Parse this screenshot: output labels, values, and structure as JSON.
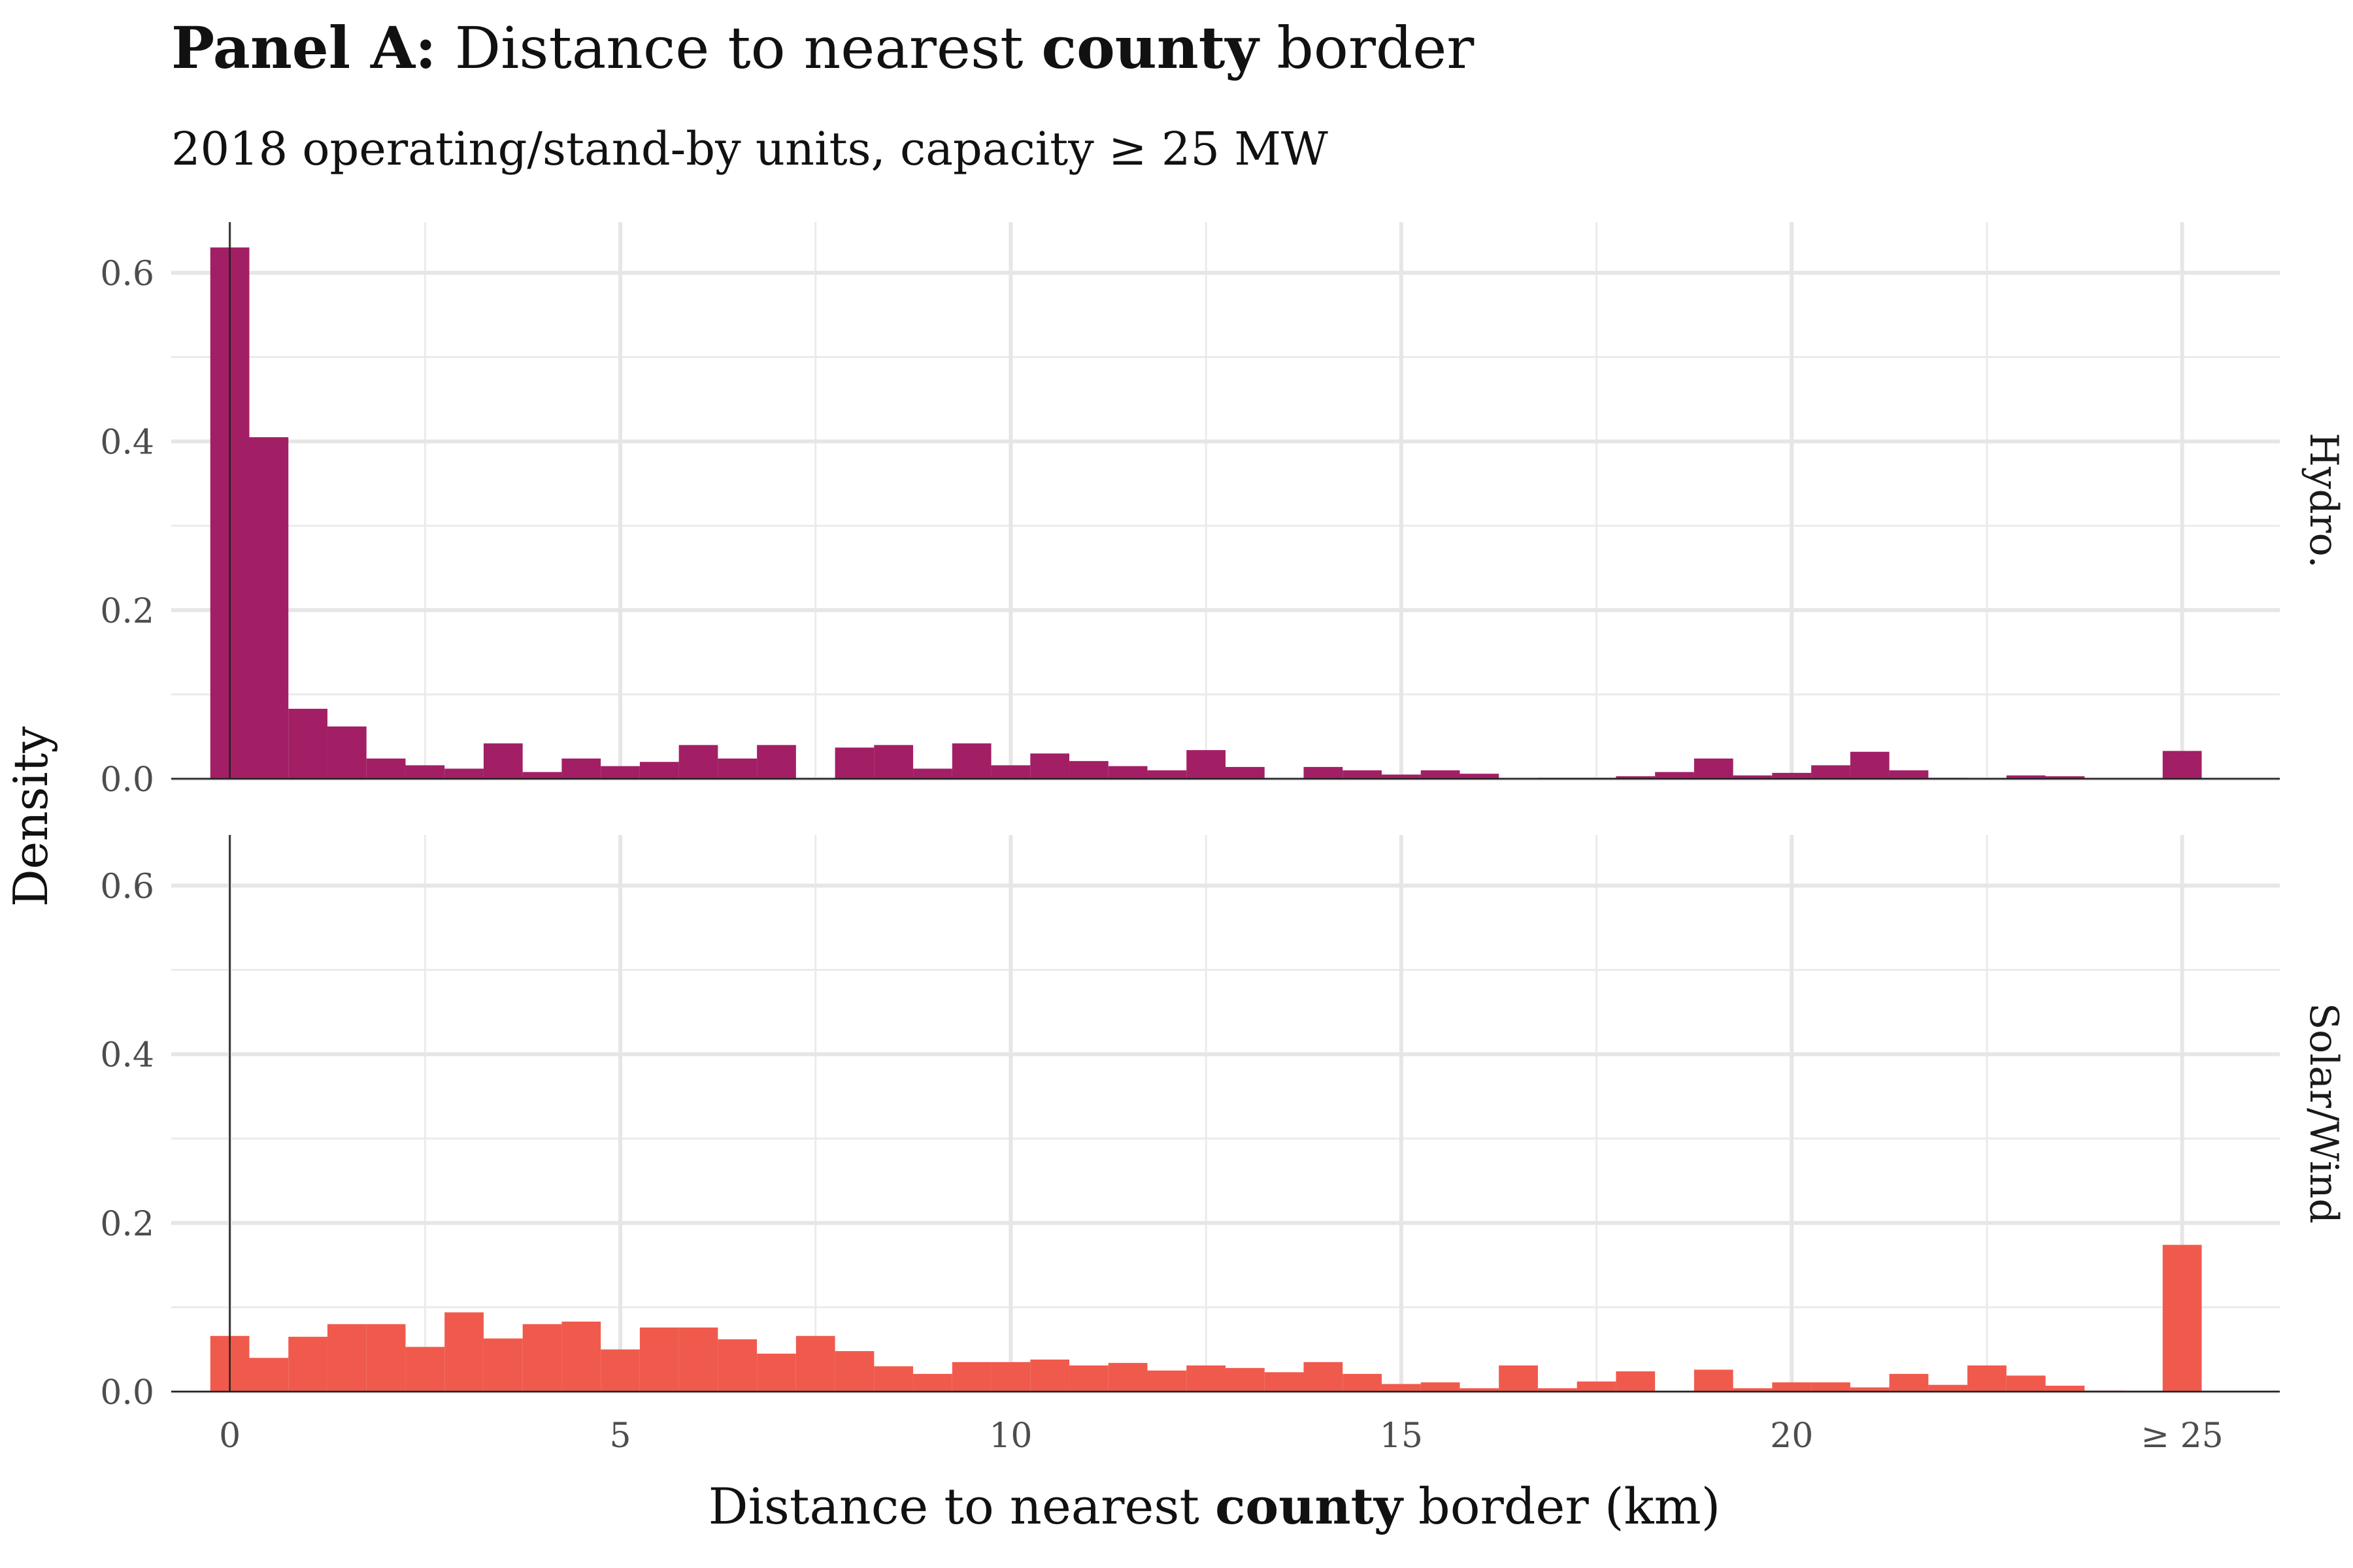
{
  "chart_data": {
    "type": "bar",
    "title": {
      "bold_part": "Panel A:",
      "part1": "Distance to nearest",
      "bold_word": "county",
      "part2": "border"
    },
    "subtitle": "2018 operating/stand-by units, capacity  ≥ 25 MW",
    "xlabel": {
      "part1": "Distance to nearest",
      "bold_word": "county",
      "part2": "border (km)"
    },
    "ylabel": "Density",
    "xlim": [
      -0.75,
      26.25
    ],
    "ylim": [
      0,
      0.66
    ],
    "x_ticks": [
      {
        "value": 0,
        "label": "0"
      },
      {
        "value": 5,
        "label": "5"
      },
      {
        "value": 10,
        "label": "10"
      },
      {
        "value": 15,
        "label": "15"
      },
      {
        "value": 20,
        "label": "20"
      },
      {
        "value": 25,
        "label": "≥ 25"
      }
    ],
    "x_minor_ticks": [
      2.5,
      7.5,
      12.5,
      17.5,
      22.5
    ],
    "y_ticks": [
      {
        "value": 0,
        "label": "0.0"
      },
      {
        "value": 0.2,
        "label": "0.2"
      },
      {
        "value": 0.4,
        "label": "0.4"
      },
      {
        "value": 0.6,
        "label": "0.6"
      }
    ],
    "y_minor_ticks": [
      0.1,
      0.3,
      0.5
    ],
    "bin_width": 0.5,
    "grid": true,
    "panels": [
      {
        "name": "Hydro.",
        "color": "#A21F65",
        "bins": [
          {
            "x": 0.0,
            "y": 0.63
          },
          {
            "x": 0.5,
            "y": 0.405
          },
          {
            "x": 1.0,
            "y": 0.083
          },
          {
            "x": 1.5,
            "y": 0.062
          },
          {
            "x": 2.0,
            "y": 0.024
          },
          {
            "x": 2.5,
            "y": 0.016
          },
          {
            "x": 3.0,
            "y": 0.012
          },
          {
            "x": 3.5,
            "y": 0.042
          },
          {
            "x": 4.0,
            "y": 0.008
          },
          {
            "x": 4.5,
            "y": 0.024
          },
          {
            "x": 5.0,
            "y": 0.015
          },
          {
            "x": 5.5,
            "y": 0.02
          },
          {
            "x": 6.0,
            "y": 0.04
          },
          {
            "x": 6.5,
            "y": 0.024
          },
          {
            "x": 7.0,
            "y": 0.04
          },
          {
            "x": 7.5,
            "y": 0.0
          },
          {
            "x": 8.0,
            "y": 0.037
          },
          {
            "x": 8.5,
            "y": 0.04
          },
          {
            "x": 9.0,
            "y": 0.012
          },
          {
            "x": 9.5,
            "y": 0.042
          },
          {
            "x": 10.0,
            "y": 0.016
          },
          {
            "x": 10.5,
            "y": 0.03
          },
          {
            "x": 11.0,
            "y": 0.021
          },
          {
            "x": 11.5,
            "y": 0.015
          },
          {
            "x": 12.0,
            "y": 0.01
          },
          {
            "x": 12.5,
            "y": 0.034
          },
          {
            "x": 13.0,
            "y": 0.014
          },
          {
            "x": 13.5,
            "y": 0.0
          },
          {
            "x": 14.0,
            "y": 0.014
          },
          {
            "x": 14.5,
            "y": 0.01
          },
          {
            "x": 15.0,
            "y": 0.005
          },
          {
            "x": 15.5,
            "y": 0.01
          },
          {
            "x": 16.0,
            "y": 0.006
          },
          {
            "x": 16.5,
            "y": 0.0
          },
          {
            "x": 17.0,
            "y": 0.001
          },
          {
            "x": 17.5,
            "y": 0.001
          },
          {
            "x": 18.0,
            "y": 0.003
          },
          {
            "x": 18.5,
            "y": 0.008
          },
          {
            "x": 19.0,
            "y": 0.024
          },
          {
            "x": 19.5,
            "y": 0.004
          },
          {
            "x": 20.0,
            "y": 0.007
          },
          {
            "x": 20.5,
            "y": 0.016
          },
          {
            "x": 21.0,
            "y": 0.032
          },
          {
            "x": 21.5,
            "y": 0.01
          },
          {
            "x": 22.0,
            "y": 0.001
          },
          {
            "x": 22.5,
            "y": 0.0
          },
          {
            "x": 23.0,
            "y": 0.004
          },
          {
            "x": 23.5,
            "y": 0.003
          },
          {
            "x": 24.0,
            "y": 0.0
          },
          {
            "x": 24.5,
            "y": 0.0
          },
          {
            "x": 25.0,
            "y": 0.033
          }
        ]
      },
      {
        "name": "Solar/Wind",
        "color": "#F05A4C",
        "bins": [
          {
            "x": 0.0,
            "y": 0.066
          },
          {
            "x": 0.5,
            "y": 0.04
          },
          {
            "x": 1.0,
            "y": 0.065
          },
          {
            "x": 1.5,
            "y": 0.08
          },
          {
            "x": 2.0,
            "y": 0.08
          },
          {
            "x": 2.5,
            "y": 0.053
          },
          {
            "x": 3.0,
            "y": 0.094
          },
          {
            "x": 3.5,
            "y": 0.063
          },
          {
            "x": 4.0,
            "y": 0.08
          },
          {
            "x": 4.5,
            "y": 0.083
          },
          {
            "x": 5.0,
            "y": 0.05
          },
          {
            "x": 5.5,
            "y": 0.076
          },
          {
            "x": 6.0,
            "y": 0.076
          },
          {
            "x": 6.5,
            "y": 0.062
          },
          {
            "x": 7.0,
            "y": 0.045
          },
          {
            "x": 7.5,
            "y": 0.066
          },
          {
            "x": 8.0,
            "y": 0.048
          },
          {
            "x": 8.5,
            "y": 0.03
          },
          {
            "x": 9.0,
            "y": 0.021
          },
          {
            "x": 9.5,
            "y": 0.035
          },
          {
            "x": 10.0,
            "y": 0.035
          },
          {
            "x": 10.5,
            "y": 0.038
          },
          {
            "x": 11.0,
            "y": 0.031
          },
          {
            "x": 11.5,
            "y": 0.034
          },
          {
            "x": 12.0,
            "y": 0.025
          },
          {
            "x": 12.5,
            "y": 0.031
          },
          {
            "x": 13.0,
            "y": 0.028
          },
          {
            "x": 13.5,
            "y": 0.023
          },
          {
            "x": 14.0,
            "y": 0.035
          },
          {
            "x": 14.5,
            "y": 0.021
          },
          {
            "x": 15.0,
            "y": 0.009
          },
          {
            "x": 15.5,
            "y": 0.011
          },
          {
            "x": 16.0,
            "y": 0.004
          },
          {
            "x": 16.5,
            "y": 0.031
          },
          {
            "x": 17.0,
            "y": 0.004
          },
          {
            "x": 17.5,
            "y": 0.012
          },
          {
            "x": 18.0,
            "y": 0.024
          },
          {
            "x": 18.5,
            "y": 0.0
          },
          {
            "x": 19.0,
            "y": 0.026
          },
          {
            "x": 19.5,
            "y": 0.004
          },
          {
            "x": 20.0,
            "y": 0.011
          },
          {
            "x": 20.5,
            "y": 0.011
          },
          {
            "x": 21.0,
            "y": 0.005
          },
          {
            "x": 21.5,
            "y": 0.021
          },
          {
            "x": 22.0,
            "y": 0.008
          },
          {
            "x": 22.5,
            "y": 0.031
          },
          {
            "x": 23.0,
            "y": 0.019
          },
          {
            "x": 23.5,
            "y": 0.007
          },
          {
            "x": 24.0,
            "y": 0.001
          },
          {
            "x": 24.5,
            "y": 0.0
          },
          {
            "x": 25.0,
            "y": 0.174
          }
        ]
      }
    ]
  }
}
